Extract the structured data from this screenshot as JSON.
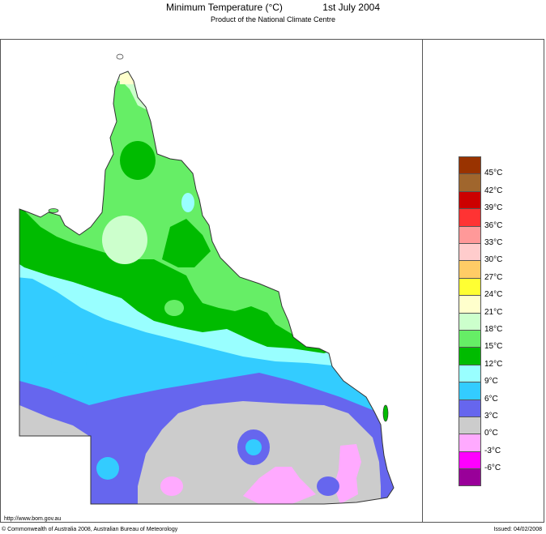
{
  "header": {
    "title": "Minimum Temperature (°C)",
    "date": "1st July 2004",
    "subtitle": "Product of the National Climate Centre"
  },
  "legend": {
    "unit": "°C",
    "items": [
      {
        "label": "45°C",
        "color": "#993300"
      },
      {
        "label": "42°C",
        "color": "#a0662d"
      },
      {
        "label": "39°C",
        "color": "#cc0000"
      },
      {
        "label": "36°C",
        "color": "#ff3333"
      },
      {
        "label": "33°C",
        "color": "#ff9999"
      },
      {
        "label": "30°C",
        "color": "#ffcccc"
      },
      {
        "label": "27°C",
        "color": "#ffcc66"
      },
      {
        "label": "24°C",
        "color": "#ffff33"
      },
      {
        "label": "21°C",
        "color": "#ffffcc"
      },
      {
        "label": "18°C",
        "color": "#ccffcc"
      },
      {
        "label": "15°C",
        "color": "#66ee66"
      },
      {
        "label": "12°C",
        "color": "#00bb00"
      },
      {
        "label": "9°C",
        "color": "#99ffff"
      },
      {
        "label": "6°C",
        "color": "#33ccff"
      },
      {
        "label": "3°C",
        "color": "#6666ee"
      },
      {
        "label": "0°C",
        "color": "#cccccc"
      },
      {
        "label": "-3°C",
        "color": "#ffaaff"
      },
      {
        "label": "-6°C",
        "color": "#ff00ff"
      },
      {
        "label": "",
        "color": "#990099"
      }
    ]
  },
  "footer": {
    "url": "http://www.bom.gov.au",
    "copyright": "© Commonwealth of Australia 2008, Australian Bureau of Meteorology",
    "issued": "Issued: 04/02/2008"
  }
}
